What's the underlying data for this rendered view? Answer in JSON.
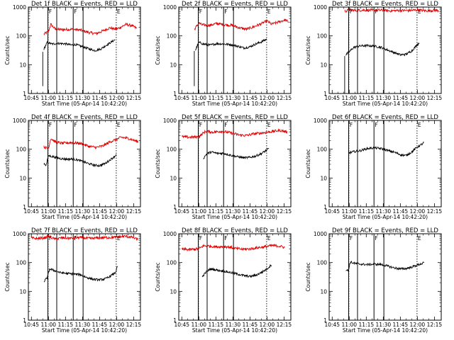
{
  "figure": {
    "x_axis_title": "Start Time (05-Apr-14 10:42:20)",
    "y_axis_title": "Counts/sec"
  },
  "chart_data": {
    "type": "line",
    "common": {
      "x_tick_labels": [
        "10:45",
        "11:00",
        "11:15",
        "11:30",
        "11:45",
        "12:00",
        "12:15"
      ],
      "x_tick_minutes": [
        645,
        660,
        675,
        690,
        705,
        720,
        735
      ],
      "xlim_minutes": [
        642.33,
        741
      ],
      "y_tick_labels": [
        "1",
        "10",
        "100",
        "1000"
      ],
      "y_tick_values": [
        1,
        10,
        100,
        1000
      ],
      "ylim": [
        1,
        1000
      ],
      "y_scale": "log",
      "solid_vlines_minutes": [
        659.5,
        667.3,
        681.8,
        690.5
      ],
      "dotted_vlines_minutes": [
        659.7,
        719.7
      ],
      "marker_labels": [
        "F",
        "E"
      ],
      "series_colors": {
        "black": "#000000",
        "red": "#e00000"
      }
    },
    "panels": [
      {
        "title": "Det 1f BLACK = Events, RED = LLD",
        "start": 655,
        "drop_start": [
          1.8,
          28
        ],
        "black": [
          [
            656,
            35
          ],
          [
            659,
            60
          ],
          [
            663,
            52
          ],
          [
            668,
            55
          ],
          [
            675,
            53
          ],
          [
            680,
            48
          ],
          [
            684,
            50
          ],
          [
            690,
            42
          ],
          [
            696,
            35
          ],
          [
            701,
            31
          ],
          [
            706,
            35
          ],
          [
            710,
            45
          ],
          [
            715,
            60
          ],
          [
            719,
            76
          ]
        ],
        "red": [
          [
            656,
            115
          ],
          [
            660,
            140
          ],
          [
            662,
            255
          ],
          [
            666,
            170
          ],
          [
            672,
            165
          ],
          [
            680,
            170
          ],
          [
            688,
            160
          ],
          [
            696,
            130
          ],
          [
            702,
            120
          ],
          [
            708,
            150
          ],
          [
            714,
            190
          ],
          [
            719,
            170
          ],
          [
            722,
            185
          ],
          [
            728,
            250
          ],
          [
            733,
            230
          ],
          [
            738,
            180
          ]
        ]
      },
      {
        "title": "Det 2f BLACK = Events, RED = LLD",
        "start": 656,
        "drop_start": [
          1.8,
          30
        ],
        "black": [
          [
            657,
            32
          ],
          [
            660,
            60
          ],
          [
            664,
            52
          ],
          [
            670,
            48
          ],
          [
            676,
            54
          ],
          [
            682,
            52
          ],
          [
            688,
            50
          ],
          [
            694,
            44
          ],
          [
            700,
            38
          ],
          [
            705,
            42
          ],
          [
            710,
            52
          ],
          [
            715,
            62
          ],
          [
            720,
            78
          ]
        ],
        "red": [
          [
            656,
            165
          ],
          [
            660,
            280
          ],
          [
            663,
            240
          ],
          [
            670,
            235
          ],
          [
            676,
            270
          ],
          [
            682,
            245
          ],
          [
            690,
            230
          ],
          [
            696,
            190
          ],
          [
            702,
            170
          ],
          [
            708,
            205
          ],
          [
            714,
            255
          ],
          [
            720,
            330
          ],
          [
            724,
            255
          ],
          [
            730,
            300
          ],
          [
            736,
            360
          ],
          [
            739,
            300
          ]
        ]
      },
      {
        "title": "Det 3f BLACK = Events, RED = LLD",
        "start": 656,
        "drop_start": [
          1,
          20
        ],
        "black": [
          [
            657,
            22
          ],
          [
            660,
            28
          ],
          [
            664,
            40
          ],
          [
            670,
            45
          ],
          [
            676,
            46
          ],
          [
            682,
            44
          ],
          [
            688,
            40
          ],
          [
            694,
            32
          ],
          [
            700,
            26
          ],
          [
            705,
            22
          ],
          [
            710,
            23
          ],
          [
            715,
            30
          ],
          [
            720,
            50
          ],
          [
            722,
            60
          ]
        ],
        "red": [
          [
            656,
            700
          ],
          [
            660,
            800
          ],
          [
            666,
            760
          ],
          [
            672,
            790
          ],
          [
            680,
            760
          ],
          [
            688,
            780
          ],
          [
            696,
            740
          ],
          [
            704,
            760
          ],
          [
            712,
            760
          ],
          [
            720,
            790
          ],
          [
            728,
            740
          ],
          [
            736,
            780
          ],
          [
            739,
            750
          ]
        ]
      },
      {
        "title": "Det 4f BLACK = Events, RED = LLD",
        "start": 656,
        "drop_start": null,
        "black": [
          [
            656,
            32
          ],
          [
            658,
            28
          ],
          [
            660,
            60
          ],
          [
            664,
            55
          ],
          [
            670,
            48
          ],
          [
            676,
            45
          ],
          [
            682,
            46
          ],
          [
            688,
            40
          ],
          [
            694,
            33
          ],
          [
            700,
            28
          ],
          [
            705,
            27
          ],
          [
            710,
            32
          ],
          [
            715,
            45
          ],
          [
            719,
            60
          ],
          [
            720,
            72
          ]
        ],
        "red": [
          [
            656,
            120
          ],
          [
            660,
            105
          ],
          [
            662,
            240
          ],
          [
            666,
            180
          ],
          [
            672,
            160
          ],
          [
            680,
            170
          ],
          [
            688,
            160
          ],
          [
            696,
            125
          ],
          [
            702,
            115
          ],
          [
            708,
            130
          ],
          [
            714,
            180
          ],
          [
            720,
            220
          ],
          [
            724,
            260
          ],
          [
            730,
            240
          ],
          [
            736,
            200
          ],
          [
            739,
            180
          ]
        ]
      },
      {
        "title": "Det 5f BLACK = Events, RED = LLD",
        "start": 664,
        "drop_start": null,
        "black": [
          [
            664,
            48
          ],
          [
            667,
            70
          ],
          [
            671,
            80
          ],
          [
            676,
            72
          ],
          [
            682,
            72
          ],
          [
            688,
            62
          ],
          [
            694,
            55
          ],
          [
            700,
            50
          ],
          [
            705,
            52
          ],
          [
            710,
            58
          ],
          [
            715,
            70
          ],
          [
            720,
            95
          ],
          [
            722,
            105
          ]
        ],
        "red": [
          [
            645,
            270
          ],
          [
            652,
            260
          ],
          [
            660,
            270
          ],
          [
            666,
            420
          ],
          [
            672,
            390
          ],
          [
            680,
            420
          ],
          [
            688,
            370
          ],
          [
            696,
            310
          ],
          [
            702,
            300
          ],
          [
            708,
            340
          ],
          [
            714,
            360
          ],
          [
            720,
            390
          ],
          [
            726,
            420
          ],
          [
            732,
            450
          ],
          [
            738,
            390
          ]
        ]
      },
      {
        "title": "Det 6f BLACK = Events, RED = LLD",
        "start": 660,
        "drop_start": null,
        "black": [
          [
            660,
            75
          ],
          [
            664,
            82
          ],
          [
            670,
            90
          ],
          [
            676,
            105
          ],
          [
            682,
            112
          ],
          [
            688,
            105
          ],
          [
            694,
            90
          ],
          [
            700,
            78
          ],
          [
            705,
            65
          ],
          [
            710,
            60
          ],
          [
            715,
            80
          ],
          [
            720,
            120
          ],
          [
            724,
            150
          ],
          [
            726,
            175
          ]
        ],
        "red": []
      },
      {
        "title": "Det 7f BLACK = Events, RED = LLD",
        "start": 656,
        "drop_start": null,
        "black": [
          [
            656,
            22
          ],
          [
            659,
            30
          ],
          [
            661,
            60
          ],
          [
            664,
            55
          ],
          [
            670,
            45
          ],
          [
            676,
            42
          ],
          [
            682,
            40
          ],
          [
            688,
            38
          ],
          [
            694,
            30
          ],
          [
            700,
            26
          ],
          [
            705,
            25
          ],
          [
            710,
            27
          ],
          [
            715,
            35
          ],
          [
            719,
            45
          ],
          [
            720,
            60
          ],
          [
            721,
            75
          ]
        ],
        "red": [
          [
            645,
            700
          ],
          [
            650,
            680
          ],
          [
            656,
            720
          ],
          [
            660,
            800
          ],
          [
            666,
            650
          ],
          [
            672,
            720
          ],
          [
            680,
            700
          ],
          [
            688,
            740
          ],
          [
            696,
            680
          ],
          [
            704,
            720
          ],
          [
            712,
            740
          ],
          [
            720,
            760
          ],
          [
            728,
            820
          ],
          [
            734,
            750
          ],
          [
            739,
            620
          ]
        ]
      },
      {
        "title": "Det 8f BLACK = Events, RED = LLD",
        "start": 663,
        "drop_start": null,
        "black": [
          [
            663,
            32
          ],
          [
            666,
            45
          ],
          [
            670,
            60
          ],
          [
            676,
            55
          ],
          [
            682,
            50
          ],
          [
            688,
            45
          ],
          [
            694,
            40
          ],
          [
            700,
            35
          ],
          [
            705,
            33
          ],
          [
            710,
            36
          ],
          [
            715,
            45
          ],
          [
            720,
            60
          ],
          [
            724,
            85
          ]
        ],
        "red": [
          [
            645,
            290
          ],
          [
            652,
            280
          ],
          [
            660,
            300
          ],
          [
            664,
            380
          ],
          [
            670,
            370
          ],
          [
            676,
            350
          ],
          [
            682,
            360
          ],
          [
            688,
            340
          ],
          [
            694,
            300
          ],
          [
            700,
            290
          ],
          [
            706,
            300
          ],
          [
            712,
            330
          ],
          [
            718,
            350
          ],
          [
            724,
            390
          ],
          [
            730,
            380
          ],
          [
            736,
            330
          ]
        ]
      },
      {
        "title": "Det 9f BLACK = Events, RED = LLD",
        "start": 657,
        "drop_start": null,
        "black": [
          [
            657,
            55
          ],
          [
            659,
            52
          ],
          [
            661,
            105
          ],
          [
            664,
            95
          ],
          [
            670,
            88
          ],
          [
            676,
            85
          ],
          [
            682,
            88
          ],
          [
            688,
            85
          ],
          [
            694,
            75
          ],
          [
            700,
            65
          ],
          [
            705,
            60
          ],
          [
            710,
            62
          ],
          [
            715,
            70
          ],
          [
            720,
            82
          ],
          [
            725,
            95
          ],
          [
            726,
            100
          ]
        ],
        "red": []
      }
    ]
  }
}
